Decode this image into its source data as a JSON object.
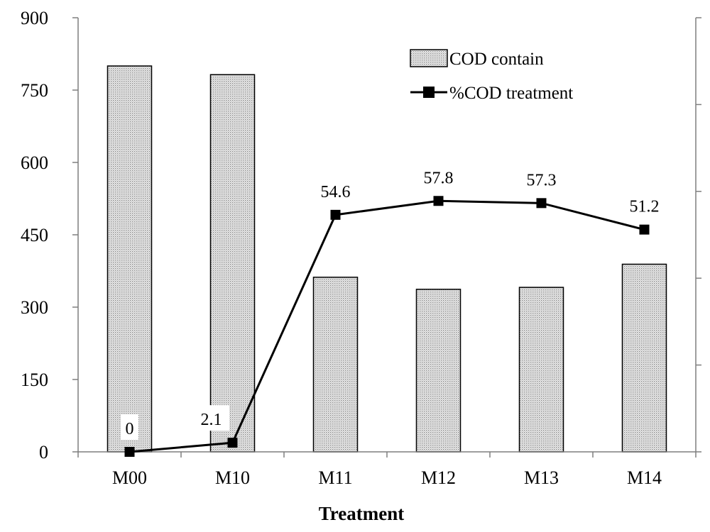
{
  "chart_data": {
    "type": "bar+line",
    "categories": [
      "M00",
      "M10",
      "M11",
      "M12",
      "M13",
      "M14"
    ],
    "series": [
      {
        "name": "COD contain",
        "type": "bar",
        "axis": "left",
        "values": [
          800,
          782,
          362,
          337,
          341,
          389
        ],
        "pattern": "dotted-gray"
      },
      {
        "name": "%COD treatment",
        "type": "line",
        "axis": "right",
        "values": [
          0,
          2.1,
          54.6,
          57.8,
          57.3,
          51.2
        ],
        "marker": "square",
        "color": "#000000"
      }
    ],
    "xlabel": "Treatment",
    "ylabel": "",
    "y_left": {
      "ylim": [
        0,
        900
      ],
      "ticks": [
        0,
        150,
        300,
        450,
        600,
        750,
        900
      ],
      "tick_labels": [
        "0",
        "150",
        "300",
        "450",
        "600",
        "750",
        "900"
      ]
    },
    "y_right": {
      "ylim": [
        0,
        100
      ],
      "ticks": [
        0,
        20,
        40,
        60,
        80,
        100
      ],
      "tick_labels_visible": false
    },
    "data_labels": [
      "0",
      "2.1",
      "54.6",
      "57.8",
      "57.3",
      "51.2"
    ],
    "legend": {
      "placement": "top-right",
      "entries": [
        "COD contain",
        "%COD treatment"
      ]
    },
    "grid": false
  }
}
